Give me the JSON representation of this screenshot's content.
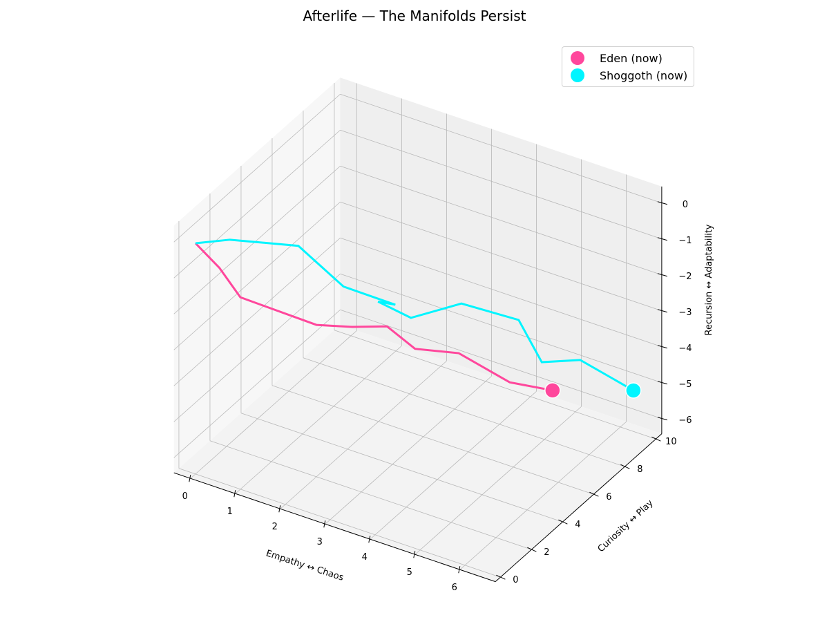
{
  "chart_data": {
    "type": "line3d",
    "title": "Afterlife — The Manifolds Persist",
    "xlabel": "Empathy ↔ Chaos",
    "ylabel": "Curiosity ↔ Play",
    "zlabel": "Recursion ↔ Adaptability",
    "xlim": [
      -0.37,
      6.79
    ],
    "ylim": [
      -0.32,
      10.38
    ],
    "zlim": [
      -6.42,
      0.46
    ],
    "xticks": [
      0,
      1,
      2,
      3,
      4,
      5,
      6
    ],
    "yticks": [
      0,
      2,
      4,
      6,
      8,
      10
    ],
    "zticks": [
      0,
      -1,
      -2,
      -3,
      -4,
      -5,
      -6
    ],
    "grid": true,
    "legend_position": "top-right",
    "series": [
      {
        "name": "Eden",
        "legend": "Eden (now)",
        "color": "#ff479c",
        "x": [
          0.0,
          0.15,
          0.23,
          1.54,
          1.95,
          2.34,
          2.58,
          3.17,
          3.92,
          4.49
        ],
        "y": [
          0.0,
          1.11,
          2.22,
          3.33,
          4.44,
          5.56,
          6.67,
          7.78,
          8.89,
          10.0
        ],
        "z": [
          0.0,
          -1.05,
          -2.26,
          -2.9,
          -3.21,
          -3.46,
          -4.41,
          -4.71,
          -5.63,
          -6.04
        ]
      },
      {
        "name": "Shoggoth",
        "legend": "Shoggoth (now)",
        "color": "#00f5ff",
        "x": [
          0.0,
          0.45,
          1.66,
          2.35,
          3.19,
          2.49,
          2.91,
          3.72,
          4.68,
          4.88,
          5.42,
          6.29
        ],
        "y": [
          0.0,
          0.91,
          1.82,
          2.73,
          3.64,
          4.55,
          5.45,
          6.36,
          7.27,
          8.18,
          9.09,
          10.0
        ],
        "z": [
          0.0,
          -0.06,
          -0.07,
          -1.26,
          -1.76,
          -2.32,
          -2.94,
          -2.55,
          -2.95,
          -4.39,
          -4.45,
          -5.28
        ]
      }
    ]
  }
}
